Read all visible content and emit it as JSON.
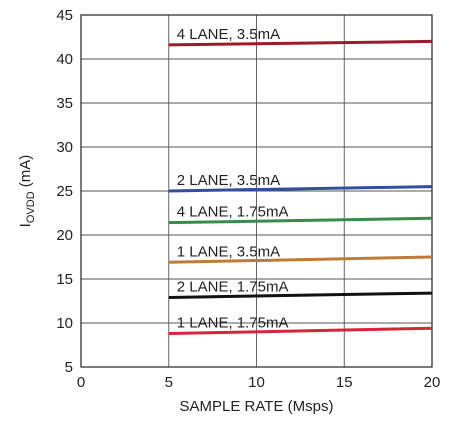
{
  "chart_data": {
    "type": "line",
    "title": "",
    "xlabel": "SAMPLE RATE (Msps)",
    "ylabel_main": "I",
    "ylabel_sub": "OVDD",
    "ylabel_unit": " (mA)",
    "xlim": [
      0,
      20
    ],
    "ylim": [
      5,
      45
    ],
    "xticks": [
      0,
      5,
      10,
      15,
      20
    ],
    "yticks": [
      5,
      10,
      15,
      20,
      25,
      30,
      35,
      40,
      45
    ],
    "grid": true,
    "series": [
      {
        "name": "4 LANE, 3.5mA",
        "color": "#9b1b2a",
        "x": [
          5,
          20
        ],
        "y": [
          41.6,
          42.0
        ]
      },
      {
        "name": "2 LANE, 3.5mA",
        "color": "#2f4f9e",
        "x": [
          5,
          20
        ],
        "y": [
          25.0,
          25.5
        ]
      },
      {
        "name": "4 LANE, 1.75mA",
        "color": "#3a8a4a",
        "x": [
          5,
          20
        ],
        "y": [
          21.4,
          21.9
        ]
      },
      {
        "name": "1 LANE, 3.5mA",
        "color": "#c07a35",
        "x": [
          5,
          20
        ],
        "y": [
          16.9,
          17.5
        ]
      },
      {
        "name": "2 LANE, 1.75mA",
        "color": "#111111",
        "x": [
          5,
          20
        ],
        "y": [
          12.9,
          13.4
        ]
      },
      {
        "name": "1 LANE, 1.75mA",
        "color": "#d6253a",
        "x": [
          5,
          20
        ],
        "y": [
          8.8,
          9.4
        ]
      }
    ]
  }
}
